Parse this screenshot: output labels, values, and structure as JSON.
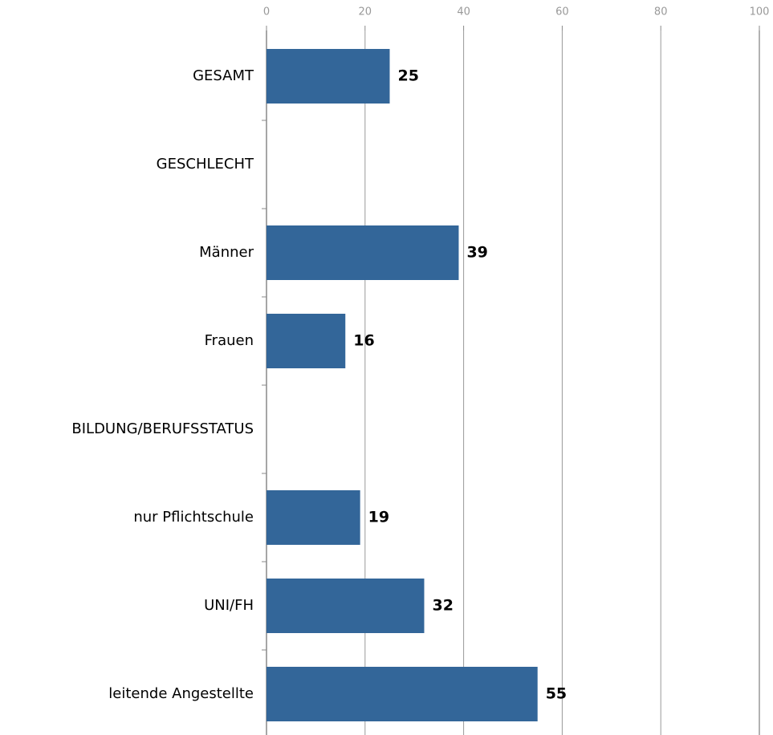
{
  "chart_data": {
    "type": "bar",
    "orientation": "horizontal",
    "categories": [
      "GESAMT",
      "GESCHLECHT",
      "Männer",
      "Frauen",
      "BILDUNG/BERUFSSTATUS",
      "nur Pflichtschule",
      "UNI/FH",
      "leitende Angestellte"
    ],
    "values": [
      25,
      null,
      39,
      16,
      null,
      19,
      32,
      55
    ],
    "color": "#336699",
    "xlim": [
      0,
      100
    ],
    "xticks": [
      0,
      20,
      40,
      60,
      80,
      100
    ],
    "grid": true
  }
}
